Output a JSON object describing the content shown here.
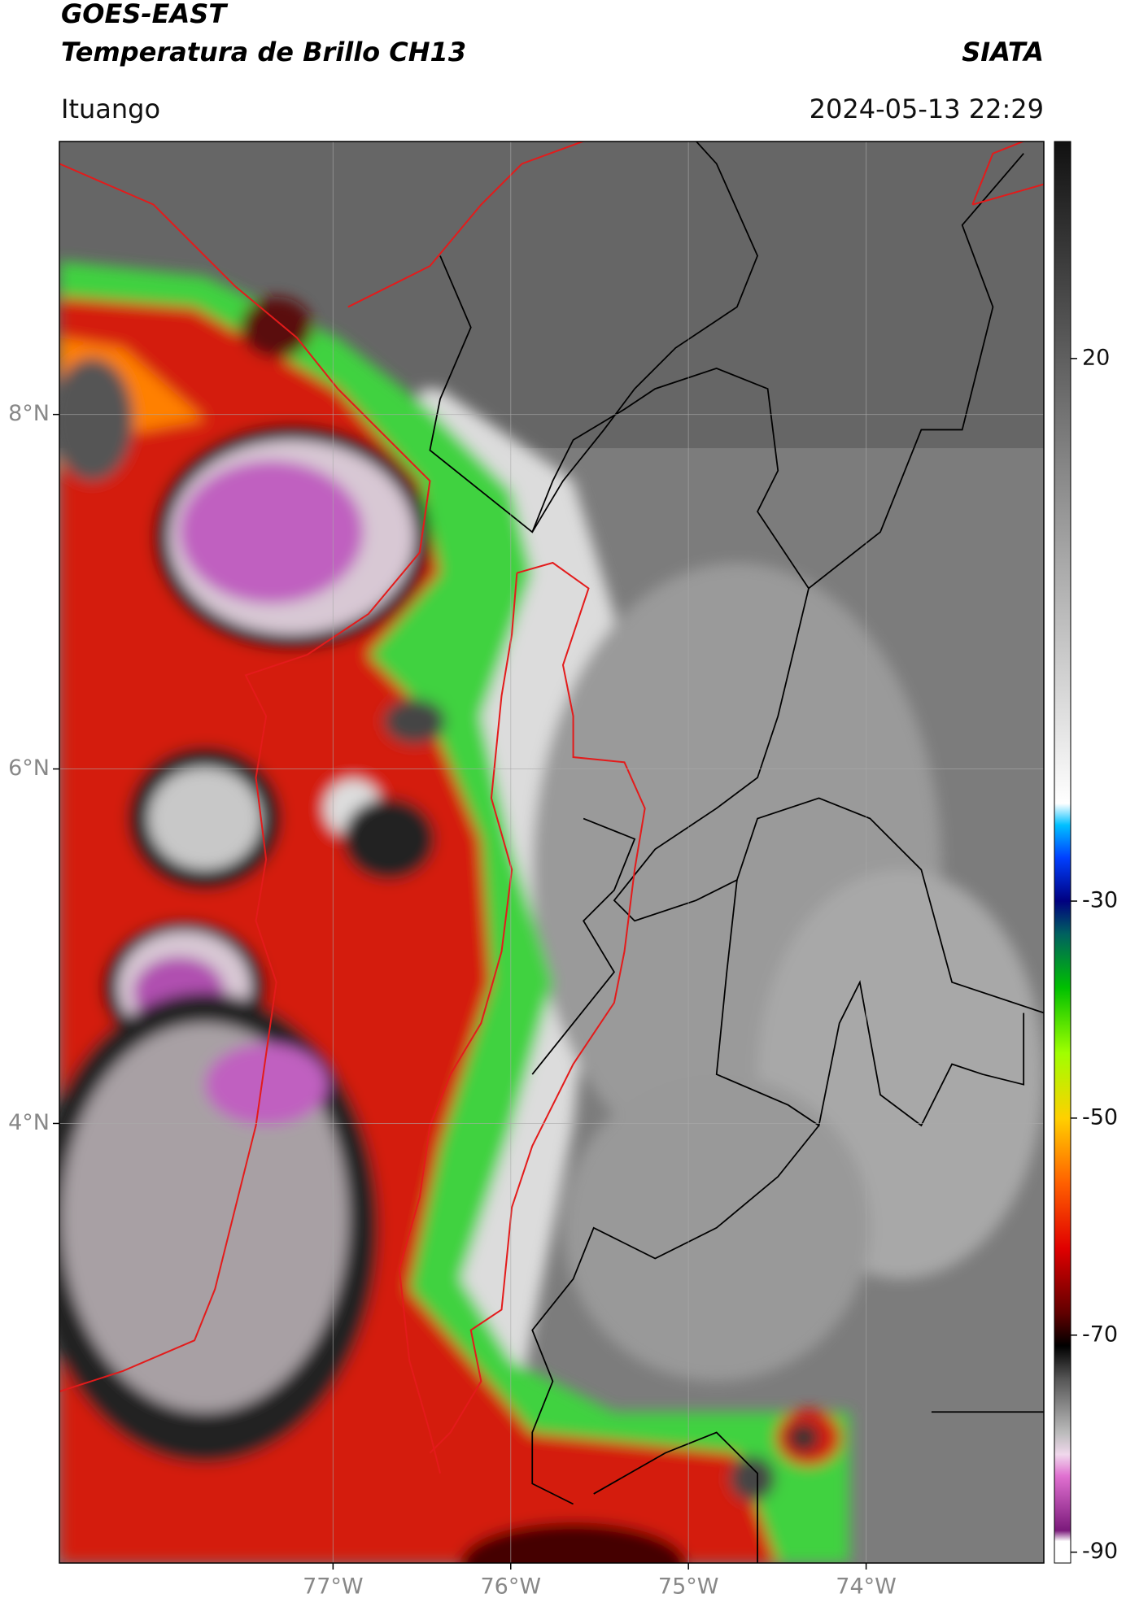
{
  "header": {
    "title": "GOES-EAST",
    "subtitle": "Temperatura de Brillo CH13",
    "source": "SIATA",
    "location": "Ituango",
    "timestamp": "2024-05-13 22:29"
  },
  "map": {
    "lon_range": [
      -78.54,
      -73.0
    ],
    "lat_range": [
      1.52,
      9.54
    ],
    "grid": true,
    "lat_ticks": [
      {
        "value": 8,
        "label": "8°N"
      },
      {
        "value": 6,
        "label": "6°N"
      },
      {
        "value": 4,
        "label": "4°N"
      }
    ],
    "lon_ticks": [
      {
        "value": -77,
        "label": "77°W"
      },
      {
        "value": -76,
        "label": "76°W"
      },
      {
        "value": -75,
        "label": "75°W"
      },
      {
        "value": -74,
        "label": "74°W"
      }
    ]
  },
  "colorbar": {
    "range": [
      -91,
      40
    ],
    "ticks": [
      20,
      -30,
      -50,
      -70,
      -90
    ],
    "stops": [
      {
        "value": -91,
        "color": "#ffffff"
      },
      {
        "value": -89,
        "color": "#ffffff"
      },
      {
        "value": -88,
        "color": "#7b1a7b"
      },
      {
        "value": -83,
        "color": "#e070d0"
      },
      {
        "value": -81,
        "color": "#f0d8ec"
      },
      {
        "value": -79,
        "color": "#bbbbbb"
      },
      {
        "value": -74,
        "color": "#555555"
      },
      {
        "value": -71,
        "color": "#000000"
      },
      {
        "value": -68,
        "color": "#600000"
      },
      {
        "value": -62,
        "color": "#e00000"
      },
      {
        "value": -56,
        "color": "#ff6000"
      },
      {
        "value": -50,
        "color": "#ffd000"
      },
      {
        "value": -44,
        "color": "#a0ff00"
      },
      {
        "value": -38,
        "color": "#00c000"
      },
      {
        "value": -33,
        "color": "#006060"
      },
      {
        "value": -30,
        "color": "#000080"
      },
      {
        "value": -26,
        "color": "#0040ff"
      },
      {
        "value": -23,
        "color": "#00c0ff"
      },
      {
        "value": -21,
        "color": "#ffffff"
      },
      {
        "value": 40,
        "color": "#111111"
      }
    ]
  }
}
